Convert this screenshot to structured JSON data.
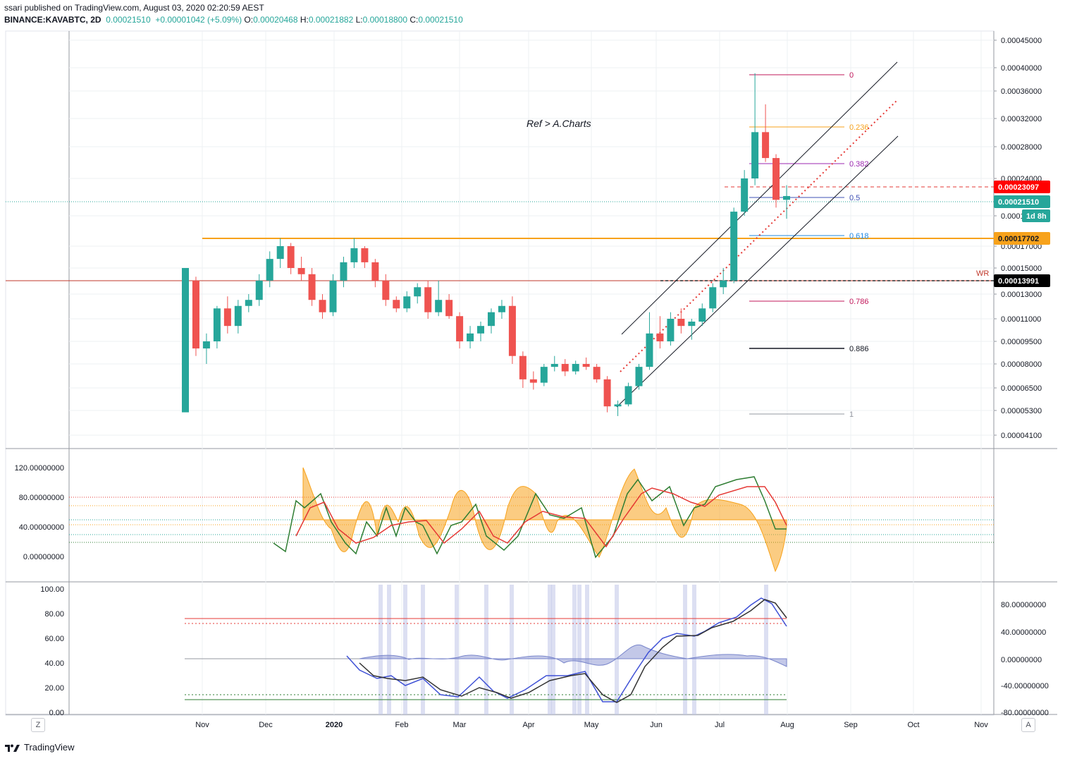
{
  "header": {
    "published_line": "ssari published on TradingView.com, August 03, 2020 02:20:59 AEST",
    "symbol": "BINANCE:KAVABTC, 2D",
    "last": "0.00021510",
    "change": "+0.00001042 (+5.09%)",
    "o_label": "O:",
    "o_value": "0.00020468",
    "h_label": "H:",
    "h_value": "0.00021882",
    "l_label": "L:",
    "l_value": "0.00018800",
    "c_label": "C:",
    "c_value": "0.00021510"
  },
  "footer": {
    "brand": "TradingView"
  },
  "buttons": {
    "left": "Z",
    "right": "A"
  },
  "colors": {
    "up": "#26a69a",
    "down": "#ef5350",
    "orange": "#f7a21b",
    "red_line": "#c0392b",
    "blue": "#3f51d6",
    "black": "#131722",
    "grid": "#eef0f3"
  },
  "chart_data": [
    {
      "type": "candlestick",
      "title": "",
      "annotation": "Ref > A.Charts",
      "x_labels": [
        "Nov",
        "Dec",
        "2020",
        "Feb",
        "Mar",
        "Apr",
        "May",
        "Jun",
        "Jul",
        "Aug",
        "Sep",
        "Oct",
        "Nov"
      ],
      "y_ticks": [
        "0.00045000",
        "0.00040000",
        "0.00036000",
        "0.00032000",
        "0.00028000",
        "0.00024000",
        "0.00019000",
        "0.00017000",
        "0.00015000",
        "0.00013000",
        "0.00011000",
        "0.00009500",
        "0.00008000",
        "0.00006500",
        "0.00005300",
        "0.00004100"
      ],
      "price_tags": [
        {
          "label": "0.00023097",
          "bg": "#ff0000",
          "fg": "#ffffff"
        },
        {
          "label": "0.00021510",
          "bg": "#26a69a",
          "fg": "#ffffff"
        },
        {
          "label": "1d 8h",
          "bg": "#26a69a",
          "fg": "#ffffff"
        },
        {
          "label": "0.00017702",
          "bg": "#f7a21b",
          "fg": "#131722"
        },
        {
          "label": "0.00013991",
          "bg": "#000000",
          "fg": "#ffffff"
        }
      ],
      "fib_levels": [
        {
          "label": "0",
          "color": "#c2185b"
        },
        {
          "label": "0.236",
          "color": "#f7a21b"
        },
        {
          "label": "0.382",
          "color": "#9c27b0"
        },
        {
          "label": "0.5",
          "color": "#3f51b5"
        },
        {
          "label": "0.618",
          "color": "#1e88e5"
        },
        {
          "label": "0.786",
          "color": "#c2185b"
        },
        {
          "label": "0.886",
          "color": "#131722"
        },
        {
          "label": "1",
          "color": "#9598a1"
        }
      ],
      "wr_label": "WR",
      "ohlc_approx": [
        [
          5.2e-05,
          0.00014,
          5.3e-05,
          0.00015
        ],
        [
          0.00014,
          0.000143,
          8.5e-05,
          9e-05
        ],
        [
          9e-05,
          0.0001,
          8e-05,
          9.5e-05
        ],
        [
          9.5e-05,
          0.00012,
          9e-05,
          0.000118
        ],
        [
          0.000118,
          0.000128,
          0.0001,
          0.000105
        ],
        [
          0.000105,
          0.000125,
          0.0001,
          0.00012
        ],
        [
          0.00012,
          0.00013,
          0.000115,
          0.000125
        ],
        [
          0.000125,
          0.000145,
          0.00012,
          0.00014
        ],
        [
          0.00014,
          0.000165,
          0.000135,
          0.000158
        ],
        [
          0.000158,
          0.000175,
          0.00015,
          0.00017
        ],
        [
          0.00017,
          0.000172,
          0.000145,
          0.00015
        ],
        [
          0.00015,
          0.00016,
          0.00014,
          0.000145
        ],
        [
          0.000145,
          0.00015,
          0.00012,
          0.000125
        ],
        [
          0.000125,
          0.00013,
          0.00011,
          0.000115
        ],
        [
          0.000115,
          0.000145,
          0.000112,
          0.00014
        ],
        [
          0.00014,
          0.00016,
          0.000135,
          0.000155
        ],
        [
          0.000155,
          0.000175,
          0.00015,
          0.000168
        ],
        [
          0.000168,
          0.00017,
          0.00015,
          0.000155
        ],
        [
          0.000155,
          0.000158,
          0.000135,
          0.00014
        ],
        [
          0.00014,
          0.000145,
          0.00012,
          0.000125
        ],
        [
          0.000125,
          0.000128,
          0.000115,
          0.000118
        ],
        [
          0.000118,
          0.000132,
          0.000115,
          0.000128
        ],
        [
          0.000128,
          0.000138,
          0.000122,
          0.000135
        ],
        [
          0.000135,
          0.00014,
          0.00011,
          0.000115
        ],
        [
          0.000115,
          0.00014,
          0.000112,
          0.000125
        ],
        [
          0.000125,
          0.00013,
          0.00011,
          0.000112
        ],
        [
          0.000112,
          0.000115,
          9e-05,
          9.5e-05
        ],
        [
          9.5e-05,
          0.000105,
          9e-05,
          0.0001
        ],
        [
          0.0001,
          0.000108,
          9.5e-05,
          0.000105
        ],
        [
          0.000105,
          0.000118,
          0.0001,
          0.000115
        ],
        [
          0.000115,
          0.000125,
          0.00011,
          0.00012
        ],
        [
          0.00012,
          0.000128,
          8e-05,
          8.5e-05
        ],
        [
          8.5e-05,
          8.8e-05,
          6.5e-05,
          7e-05
        ],
        [
          7e-05,
          7.5e-05,
          6.4e-05,
          6.8e-05
        ],
        [
          6.8e-05,
          8e-05,
          6.6e-05,
          7.8e-05
        ],
        [
          7.8e-05,
          8.5e-05,
          7.5e-05,
          8e-05
        ],
        [
          8e-05,
          8.3e-05,
          7.2e-05,
          7.5e-05
        ],
        [
          7.5e-05,
          8.2e-05,
          7.3e-05,
          8e-05
        ],
        [
          8e-05,
          8.4e-05,
          7.6e-05,
          7.8e-05
        ],
        [
          7.8e-05,
          8e-05,
          6.8e-05,
          7e-05
        ],
        [
          7e-05,
          7.2e-05,
          5.2e-05,
          5.5e-05
        ],
        [
          5.5e-05,
          5.8e-05,
          5e-05,
          5.6e-05
        ],
        [
          5.6e-05,
          6.8e-05,
          5.5e-05,
          6.6e-05
        ],
        [
          6.6e-05,
          8e-05,
          6.4e-05,
          7.8e-05
        ],
        [
          7.8e-05,
          0.000115,
          7.6e-05,
          0.0001
        ],
        [
          0.0001,
          0.000112,
          9e-05,
          9.5e-05
        ],
        [
          9.5e-05,
          0.000115,
          9.2e-05,
          0.00011
        ],
        [
          0.00011,
          0.000118,
          0.0001,
          0.000105
        ],
        [
          0.000105,
          0.00011,
          9.6e-05,
          0.000108
        ],
        [
          0.000108,
          0.000122,
          0.000105,
          0.000118
        ],
        [
          0.000118,
          0.000138,
          0.000115,
          0.000135
        ],
        [
          0.000135,
          0.00015,
          0.00013,
          0.00014
        ],
        [
          0.00014,
          0.0002,
          0.000138,
          0.000195
        ],
        [
          0.000195,
          0.00025,
          0.00019,
          0.00024
        ],
        [
          0.00024,
          0.00039,
          0.00023,
          0.0003
        ],
        [
          0.0003,
          0.00034,
          0.00026,
          0.000265
        ],
        [
          0.000265,
          0.00027,
          0.0002,
          0.00021
        ],
        [
          0.00021,
          0.00023,
          0.000188,
          0.000215
        ]
      ]
    },
    {
      "type": "line",
      "title": "",
      "y_ticks": [
        "120.00000000",
        "80.00000000",
        "40.00000000",
        "0.00000000"
      ]
    },
    {
      "type": "line",
      "title": "",
      "y_ticks_left": [
        "100.00",
        "80.00",
        "60.00",
        "40.00",
        "20.00",
        "0.00"
      ],
      "y_ticks_right": [
        "80.00000000",
        "40.00000000",
        "0.00000000",
        "-40.00000000",
        "-80.00000000"
      ]
    }
  ]
}
